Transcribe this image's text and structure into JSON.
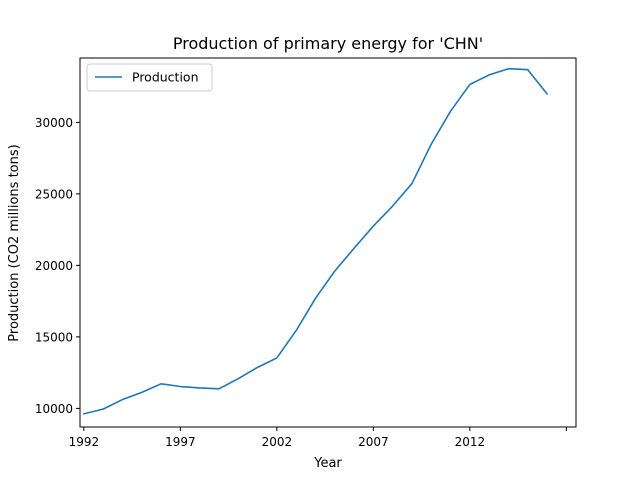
{
  "chart_data": {
    "type": "line",
    "title": "Production of primary energy for 'CHN'",
    "xlabel": "Year",
    "ylabel": "Production (CO2 millions tons)",
    "xlim": [
      1991.8,
      2017.5
    ],
    "ylim": [
      8700,
      34500
    ],
    "xticks": [
      1992,
      1997,
      2002,
      2007,
      2012,
      2017
    ],
    "xtick_labels": [
      "1992",
      "1997",
      "2002",
      "2007",
      "2012",
      ""
    ],
    "yticks": [
      10000,
      15000,
      20000,
      25000,
      30000
    ],
    "ytick_labels": [
      "10000",
      "15000",
      "20000",
      "25000",
      "30000"
    ],
    "grid": false,
    "legend": {
      "position": "top-left",
      "entries": [
        "Production"
      ]
    },
    "series": [
      {
        "name": "Production",
        "color": "#1f77b4",
        "x": [
          1992,
          1993,
          1994,
          1995,
          1996,
          1997,
          1998,
          1999,
          2000,
          2001,
          2002,
          2003,
          2004,
          2005,
          2006,
          2007,
          2008,
          2009,
          2010,
          2011,
          2012,
          2013,
          2014,
          2015,
          2016
        ],
        "y": [
          9620,
          9950,
          10620,
          11120,
          11720,
          11530,
          11430,
          11370,
          12080,
          12870,
          13530,
          15440,
          17700,
          19600,
          21200,
          22750,
          24150,
          25720,
          28480,
          30780,
          32650,
          33320,
          33750,
          33680,
          31990
        ]
      }
    ]
  }
}
